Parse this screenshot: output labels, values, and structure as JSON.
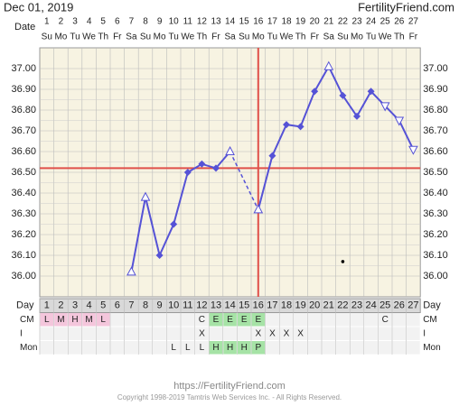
{
  "chart_data": {
    "type": "line",
    "title": "Dec 01, 2019",
    "site": "FertilityFriend.com",
    "date_label": "Date",
    "categories": [
      1,
      2,
      3,
      4,
      5,
      6,
      7,
      8,
      9,
      10,
      11,
      12,
      13,
      14,
      15,
      16,
      17,
      18,
      19,
      20,
      21,
      22,
      23,
      24,
      25,
      26,
      27
    ],
    "weekdays": [
      "Su",
      "Mo",
      "Tu",
      "We",
      "Th",
      "Fr",
      "Sa",
      "Su",
      "Mo",
      "Tu",
      "We",
      "Th",
      "Fr",
      "Sa",
      "Su",
      "Mo",
      "Tu",
      "We",
      "Th",
      "Fr",
      "Sa",
      "Su",
      "Mo",
      "Tu",
      "We",
      "Th",
      "Fr"
    ],
    "values": [
      null,
      null,
      null,
      null,
      null,
      null,
      36.02,
      36.38,
      36.1,
      36.25,
      36.5,
      36.54,
      36.52,
      36.6,
      null,
      36.32,
      36.58,
      36.73,
      36.72,
      36.89,
      37.01,
      36.87,
      36.77,
      36.89,
      36.82,
      36.75,
      36.61
    ],
    "markers": [
      null,
      null,
      null,
      null,
      null,
      null,
      "open-up",
      "open-up",
      "diamond",
      "diamond",
      "diamond",
      "diamond",
      "diamond",
      "open-up",
      null,
      "open-up",
      "diamond",
      "diamond",
      "diamond",
      "diamond",
      "open-up",
      "diamond",
      "diamond",
      "diamond",
      "open-down",
      "open-down",
      "open-down"
    ],
    "color": "#5552d6",
    "ylim": [
      35.9,
      37.1
    ],
    "yticks": [
      {
        "value": 36.0,
        "label": "36.00"
      },
      {
        "value": 36.1,
        "label": "36.10"
      },
      {
        "value": 36.2,
        "label": "36.20"
      },
      {
        "value": 36.3,
        "label": "36.30"
      },
      {
        "value": 36.4,
        "label": "36.40"
      },
      {
        "value": 36.5,
        "label": "36.50"
      },
      {
        "value": 36.6,
        "label": "36.60"
      },
      {
        "value": 36.7,
        "label": "36.70"
      },
      {
        "value": 36.8,
        "label": "36.80"
      },
      {
        "value": 36.9,
        "label": "36.90"
      },
      {
        "value": 37.0,
        "label": "37.00"
      }
    ],
    "grid": true,
    "coverline": 36.52,
    "ovulation_day": 16,
    "reference_color": "#e0504a",
    "dot": {
      "x": 22,
      "y": 36.07
    }
  },
  "table": {
    "day_label": "Day",
    "rows": [
      {
        "label": "CM",
        "cells": [
          "L",
          "M",
          "H",
          "M",
          "L",
          null,
          null,
          null,
          null,
          null,
          null,
          "C",
          "E",
          "E",
          "E",
          "E",
          null,
          null,
          null,
          null,
          null,
          null,
          null,
          null,
          "C",
          null,
          null
        ],
        "colors": [
          "#f4c6dc",
          "#f4c6dc",
          "#f4c6dc",
          "#f4c6dc",
          "#f4c6dc",
          null,
          null,
          null,
          null,
          null,
          null,
          null,
          "#a6e3a6",
          "#a6e3a6",
          "#a6e3a6",
          "#a6e3a6",
          null,
          null,
          null,
          null,
          null,
          null,
          null,
          null,
          null,
          null,
          null
        ]
      },
      {
        "label": "I",
        "cells": [
          null,
          null,
          null,
          null,
          null,
          null,
          null,
          null,
          null,
          null,
          null,
          "X",
          null,
          null,
          null,
          "X",
          "X",
          "X",
          "X",
          null,
          null,
          null,
          null,
          null,
          null,
          null,
          null
        ],
        "colors": [
          null,
          null,
          null,
          null,
          null,
          null,
          null,
          null,
          null,
          null,
          null,
          null,
          null,
          null,
          null,
          null,
          null,
          null,
          null,
          null,
          null,
          null,
          null,
          null,
          null,
          null,
          null
        ]
      },
      {
        "label": "Mon",
        "cells": [
          null,
          null,
          null,
          null,
          null,
          null,
          null,
          null,
          null,
          "L",
          "L",
          "L",
          "H",
          "H",
          "H",
          "P",
          null,
          null,
          null,
          null,
          null,
          null,
          null,
          null,
          null,
          null,
          null
        ],
        "colors": [
          null,
          null,
          null,
          null,
          null,
          null,
          null,
          null,
          null,
          null,
          null,
          null,
          "#a6e3a6",
          "#a6e3a6",
          "#a6e3a6",
          "#a6e3a6",
          null,
          null,
          null,
          null,
          null,
          null,
          null,
          null,
          null,
          null,
          null
        ]
      }
    ]
  },
  "footer": {
    "url": "https://FertilityFriend.com",
    "copyright": "Copyright 1998-2019 Tamtris Web Services Inc. - All Rights Reserved."
  }
}
